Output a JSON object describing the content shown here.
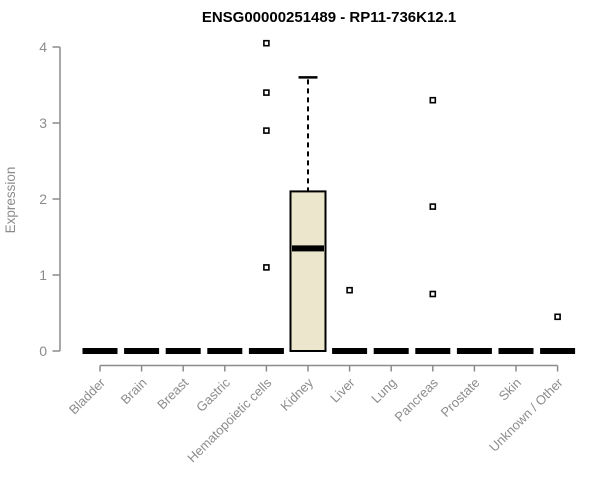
{
  "title": "ENSG00000251489 - RP11-736K12.1",
  "chart_data": {
    "type": "boxplot",
    "title": "ENSG00000251489 - RP11-736K12.1",
    "xlabel": "",
    "ylabel": "Expression",
    "ylim": [
      0,
      4
    ],
    "yticks": [
      0,
      1,
      2,
      3,
      4
    ],
    "grid": false,
    "legend": "none",
    "categories": [
      "Bladder",
      "Brain",
      "Breast",
      "Gastric",
      "Hematopoietic cells",
      "Kidney",
      "Liver",
      "Lung",
      "Pancreas",
      "Prostate",
      "Skin",
      "Unknown / Other"
    ],
    "boxes": [
      {
        "label": "Bladder",
        "min": 0,
        "q1": 0,
        "median": 0,
        "q3": 0,
        "whisker_high": 0,
        "outliers": []
      },
      {
        "label": "Brain",
        "min": 0,
        "q1": 0,
        "median": 0,
        "q3": 0,
        "whisker_high": 0,
        "outliers": []
      },
      {
        "label": "Breast",
        "min": 0,
        "q1": 0,
        "median": 0,
        "q3": 0,
        "whisker_high": 0,
        "outliers": []
      },
      {
        "label": "Gastric",
        "min": 0,
        "q1": 0,
        "median": 0,
        "q3": 0,
        "whisker_high": 0,
        "outliers": []
      },
      {
        "label": "Hematopoietic cells",
        "min": 0,
        "q1": 0,
        "median": 0,
        "q3": 0,
        "whisker_high": 0,
        "outliers": [
          4.05,
          3.4,
          2.9,
          1.1
        ]
      },
      {
        "label": "Kidney",
        "min": 0,
        "q1": 0,
        "median": 1.35,
        "q3": 2.1,
        "whisker_high": 3.6,
        "outliers": []
      },
      {
        "label": "Liver",
        "min": 0,
        "q1": 0,
        "median": 0,
        "q3": 0,
        "whisker_high": 0,
        "outliers": [
          0.8
        ]
      },
      {
        "label": "Lung",
        "min": 0,
        "q1": 0,
        "median": 0,
        "q3": 0,
        "whisker_high": 0,
        "outliers": []
      },
      {
        "label": "Pancreas",
        "min": 0,
        "q1": 0,
        "median": 0,
        "q3": 0,
        "whisker_high": 0,
        "outliers": [
          3.3,
          1.9,
          0.75
        ]
      },
      {
        "label": "Prostate",
        "min": 0,
        "q1": 0,
        "median": 0,
        "q3": 0,
        "whisker_high": 0,
        "outliers": []
      },
      {
        "label": "Skin",
        "min": 0,
        "q1": 0,
        "median": 0,
        "q3": 0,
        "whisker_high": 0,
        "outliers": []
      },
      {
        "label": "Unknown / Other",
        "min": 0,
        "q1": 0,
        "median": 0,
        "q3": 0,
        "whisker_high": 0,
        "outliers": [
          0.45
        ]
      }
    ],
    "colors": {
      "box_fill": "#ECE7CC",
      "box_border": "#000000",
      "median": "#000000",
      "whisker": "#000000",
      "outlier_stroke": "#000000",
      "outlier_fill": "#FFFFFF",
      "axis": "#8C8C8C",
      "title": "#000000",
      "background": "#FFFFFF"
    }
  }
}
